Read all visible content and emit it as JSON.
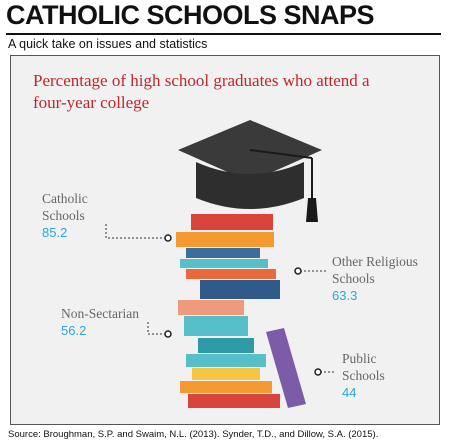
{
  "header": {
    "title": "CATHOLIC SCHOOLS SNAPS",
    "subtitle": "A quick take on issues and statistics"
  },
  "source": "Source: Broughman, S.P. and Swaim, N.L. (2013). Synder, T.D., and Dillow, S.A. (2015).",
  "chart_data": {
    "type": "bar",
    "title": "Percentage of high school graduates who attend a four-year college",
    "categories": [
      "Catholic Schools",
      "Other Religious Schools",
      "Non-Sectarian",
      "Public Schools"
    ],
    "values": [
      85.2,
      63.3,
      56.2,
      44
    ],
    "category_lines": [
      [
        "Catholic",
        "Schools"
      ],
      [
        "Other Religious",
        "Schools"
      ],
      [
        "Non-Sectarian"
      ],
      [
        "Public",
        "Schools"
      ]
    ],
    "value_labels": [
      "85.2",
      "63.3",
      "56.2",
      "44"
    ],
    "label_color": "#666666",
    "value_color": "#2aa7d8",
    "title_color": "#c0262c"
  },
  "colors": {
    "cap": "#3a3a3a",
    "tassel": "#1a1a1a",
    "books": [
      "#d9443c",
      "#3a6f9c",
      "#f59a32",
      "#56bfc7",
      "#2f5a8a",
      "#e66a3b",
      "#7c5ca8",
      "#2e9aa6",
      "#f6c544"
    ]
  }
}
